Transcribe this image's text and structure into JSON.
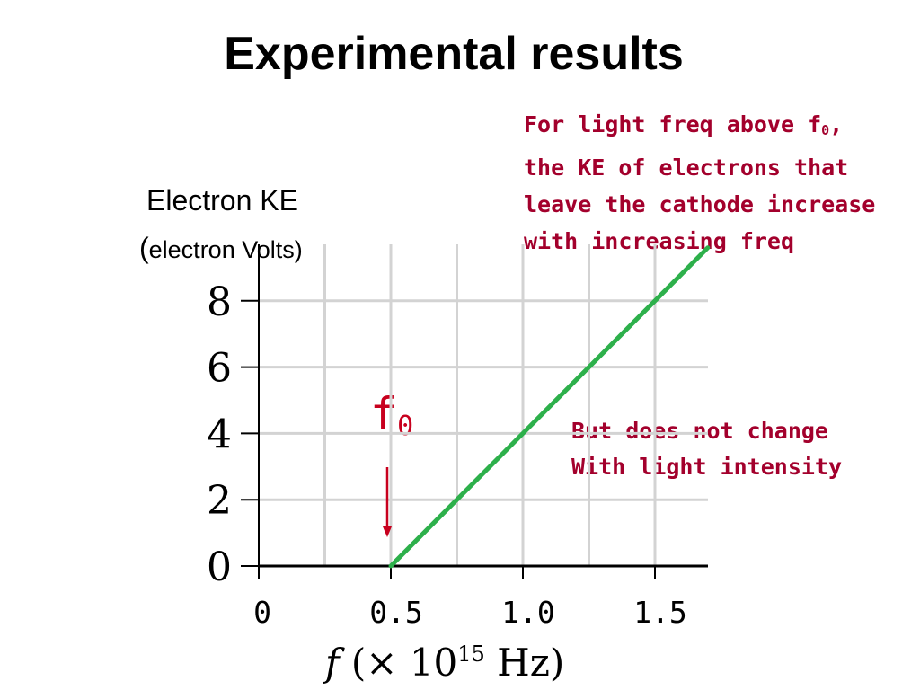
{
  "title": "Experimental results",
  "y_axis": {
    "label_line1": "Electron KE",
    "label_line2_paren_open": "(",
    "label_line2_text": "electron Volts)"
  },
  "annotations": {
    "top_line1_pre": "For light freq above f",
    "top_line1_sub": "0",
    "top_line1_post": ",",
    "top_line2": "the KE of electrons that",
    "top_line3": "leave the cathode increase",
    "top_line4": "with increasing freq",
    "bottom_line1": "But does not change",
    "bottom_line2": "With light intensity",
    "f0_main": "f",
    "f0_sub": "0"
  },
  "colors": {
    "line": "#2db04b",
    "annotation": "#a3002c",
    "f0_marker": "#c8001e",
    "grid": "#d3d3d3"
  },
  "chart_data": {
    "type": "line",
    "series": [
      {
        "x": [
          0.5,
          0.75,
          1.0,
          1.25,
          1.5,
          1.7
        ],
        "y": [
          0,
          2,
          4,
          6,
          8,
          9.6
        ]
      }
    ],
    "xlim": [
      0,
      1.7
    ],
    "ylim": [
      0,
      9.5
    ],
    "x_ticks": [
      0,
      0.5,
      1.0,
      1.5
    ],
    "x_tick_labels": [
      "0",
      "0.5",
      "1.0",
      "1.5"
    ],
    "x_grid": [
      0.25,
      0.5,
      0.75,
      1.0,
      1.25,
      1.5
    ],
    "y_ticks": [
      0,
      2,
      4,
      6,
      8
    ],
    "y_tick_labels": [
      "0",
      "2",
      "4",
      "6",
      "8"
    ],
    "xlabel_pre": "f",
    "xlabel_mid": " (× 10",
    "xlabel_exp": "15",
    "xlabel_post": " Hz)",
    "grid": true,
    "f0_marker_x": 0.5
  }
}
